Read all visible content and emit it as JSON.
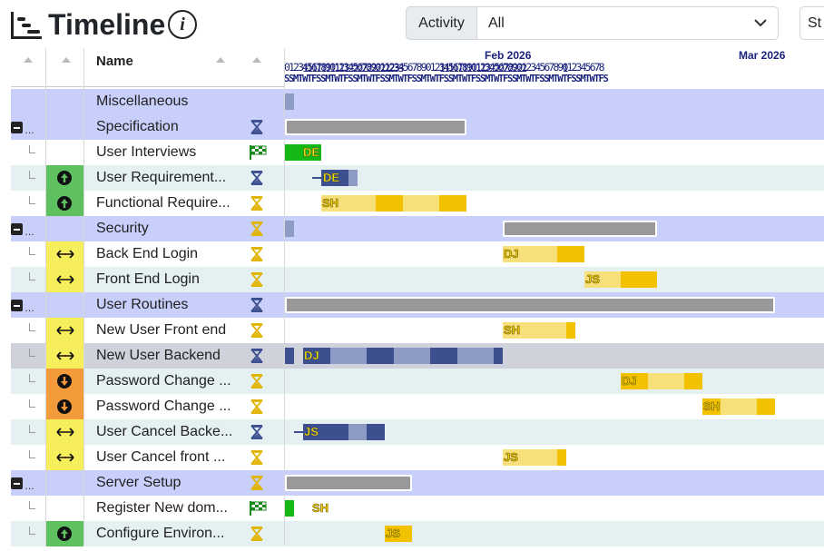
{
  "header": {
    "title": "Timeline",
    "info_symbol": "i",
    "filter_label": "Activity",
    "filter_value": "All",
    "status_button_label": "St"
  },
  "columns": {
    "name": "Name"
  },
  "scale": {
    "digits_line1": "1111111111222222222233Feb 2026   1111111111222222222Mar 2026   1",
    "month1": "Feb 2026",
    "month2": "Mar 2026",
    "line1a": "1111111111222222222233",
    "line1b": "1111111111222222222",
    "line1c": "1",
    "line2": "0123456789012345678901123456789012345678901234567890123456789012345678",
    "line3": "SSMTWTFSSMTWTFSSMTWTFSSMTWTFSSMTWTFSSMTWTFSSMTWTFSSMTWTFSSMTWTFSSMTWTFS"
  },
  "rows": [
    {
      "name": "Miscellaneous",
      "type": "summary"
    },
    {
      "name": "Specification",
      "type": "summary",
      "status": "hourglass-blue"
    },
    {
      "name": "User Interviews",
      "type": "task",
      "status": "flag",
      "tag": "DE"
    },
    {
      "name": "User Requirement...",
      "type": "task",
      "priority": "up",
      "status": "hourglass-blue",
      "tag": "DE"
    },
    {
      "name": "Functional Require...",
      "type": "task",
      "priority": "up",
      "status": "hourglass-yellow",
      "tag": "SH"
    },
    {
      "name": "Security",
      "type": "summary",
      "status": "hourglass-yellow"
    },
    {
      "name": "Back End Login",
      "type": "task",
      "priority": "mid",
      "status": "hourglass-yellow",
      "tag": "DJ"
    },
    {
      "name": "Front End Login",
      "type": "task",
      "priority": "mid",
      "status": "hourglass-yellow",
      "tag": "JS"
    },
    {
      "name": "User Routines",
      "type": "summary",
      "status": "hourglass-blue"
    },
    {
      "name": "New User Front end",
      "type": "task",
      "priority": "mid",
      "status": "hourglass-yellow",
      "tag": "SH"
    },
    {
      "name": "New User Backend",
      "type": "task",
      "priority": "mid",
      "status": "hourglass-blue",
      "tag": "DJ"
    },
    {
      "name": "Password Change ...",
      "type": "task",
      "priority": "down",
      "status": "hourglass-yellow",
      "tag": "DJ"
    },
    {
      "name": "Password Change ...",
      "type": "task",
      "priority": "down",
      "status": "hourglass-yellow",
      "tag": "SH"
    },
    {
      "name": "User Cancel Backe...",
      "type": "task",
      "priority": "mid",
      "status": "hourglass-blue",
      "tag": "JS"
    },
    {
      "name": "User Cancel front ...",
      "type": "task",
      "priority": "mid",
      "status": "hourglass-yellow",
      "tag": "JS"
    },
    {
      "name": "Server Setup",
      "type": "summary",
      "status": "hourglass-yellow"
    },
    {
      "name": "Register New dom...",
      "type": "task",
      "status": "flag",
      "tag": "SH"
    },
    {
      "name": "Configure Environ...",
      "type": "task",
      "priority": "up",
      "status": "hourglass-yellow",
      "tag": "JS"
    }
  ],
  "colors": {
    "summary_row": "#c9cffb",
    "alt_row": "#e4f0f2",
    "priority_up": "#5fc060",
    "priority_mid": "#f6ef5b",
    "priority_down": "#f39b3a",
    "bar_blue": "#3c4f8f",
    "bar_yellow": "#f2c100"
  }
}
